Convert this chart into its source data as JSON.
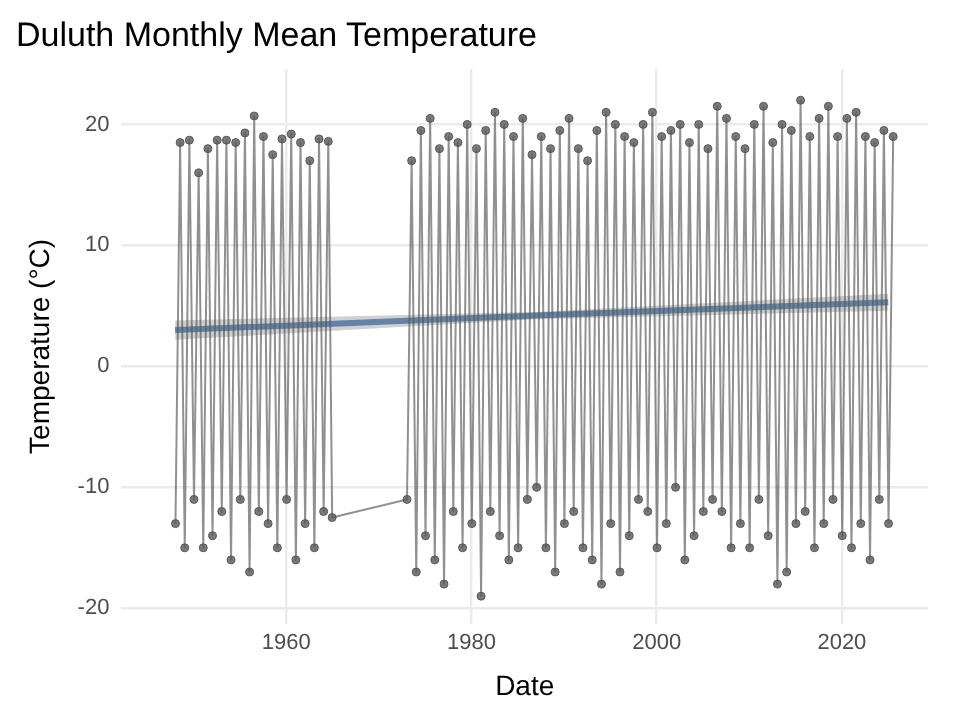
{
  "chart_data": {
    "type": "line",
    "title": "Duluth Monthly Mean Temperature",
    "xlabel": "Date",
    "ylabel": "Temperature (°C)",
    "xlim": [
      1942.2,
      2029.3
    ],
    "xticks": [
      1960,
      1980,
      2000,
      2020
    ],
    "ylim": [
      -21.3,
      24.6
    ],
    "yticks": [
      -20,
      -10,
      0,
      10,
      20
    ],
    "grid": true,
    "legend": false,
    "marker": "circle",
    "line_style": "solid",
    "series": [
      {
        "color": "#595959",
        "x": [
          1948.04,
          1948.54,
          1949.04,
          1949.54,
          1950.04,
          1950.54,
          1951.04,
          1951.54,
          1952.04,
          1952.54,
          1953.04,
          1953.54,
          1954.04,
          1954.54,
          1955.04,
          1955.54,
          1956.04,
          1956.54,
          1957.04,
          1957.54,
          1958.04,
          1958.54,
          1959.04,
          1959.54,
          1960.04,
          1960.54,
          1961.04,
          1961.54,
          1962.04,
          1962.54,
          1963.04,
          1963.54,
          1964.04,
          1964.54,
          1964.96,
          1973.04,
          1973.54,
          1974.04,
          1974.54,
          1975.04,
          1975.54,
          1976.04,
          1976.54,
          1977.04,
          1977.54,
          1978.04,
          1978.54,
          1979.04,
          1979.54,
          1980.04,
          1980.54,
          1981.04,
          1981.54,
          1982.04,
          1982.54,
          1983.04,
          1983.54,
          1984.04,
          1984.54,
          1985.04,
          1985.54,
          1986.04,
          1986.54,
          1987.04,
          1987.54,
          1988.04,
          1988.54,
          1989.04,
          1989.54,
          1990.04,
          1990.54,
          1991.04,
          1991.54,
          1992.04,
          1992.54,
          1993.04,
          1993.54,
          1994.04,
          1994.54,
          1995.04,
          1995.54,
          1996.04,
          1996.54,
          1997.04,
          1997.54,
          1998.04,
          1998.54,
          1999.04,
          1999.54,
          2000.04,
          2000.54,
          2001.04,
          2001.54,
          2002.04,
          2002.54,
          2003.04,
          2003.54,
          2004.04,
          2004.54,
          2005.04,
          2005.54,
          2006.04,
          2006.54,
          2007.04,
          2007.54,
          2008.04,
          2008.54,
          2009.04,
          2009.54,
          2010.04,
          2010.54,
          2011.04,
          2011.54,
          2012.04,
          2012.54,
          2013.04,
          2013.54,
          2014.04,
          2014.54,
          2015.04,
          2015.54,
          2016.04,
          2016.54,
          2017.04,
          2017.54,
          2018.04,
          2018.54,
          2019.04,
          2019.54,
          2020.04,
          2020.54,
          2021.04,
          2021.54,
          2022.04,
          2022.54,
          2023.04,
          2023.54,
          2024.04,
          2024.54,
          2025.04,
          2025.54
        ],
        "values": [
          -13,
          18.5,
          -15,
          18.7,
          -11,
          16,
          -15,
          18,
          -14,
          18.7,
          -12,
          18.7,
          -16,
          18.5,
          -11,
          19.3,
          -17,
          20.7,
          -12,
          19,
          -13,
          17.5,
          -15,
          18.8,
          -11,
          19.2,
          -16,
          18.5,
          -13,
          17,
          -15,
          18.8,
          -12,
          18.6,
          -12.5,
          -11,
          17,
          -17,
          19.5,
          -14,
          20.5,
          -16,
          18,
          -18,
          19,
          -12,
          18.5,
          -15,
          20,
          -13,
          18,
          -19,
          19.5,
          -12,
          21,
          -14,
          20,
          -16,
          19,
          -15,
          20.5,
          -11,
          17.5,
          -10,
          19,
          -15,
          18,
          -17,
          19.5,
          -13,
          20.5,
          -12,
          18,
          -15,
          17,
          -16,
          19.5,
          -18,
          21,
          -13,
          20,
          -17,
          19,
          -14,
          18.5,
          -11,
          20,
          -12,
          21,
          -15,
          19,
          -13,
          19.5,
          -10,
          20,
          -16,
          18.5,
          -14,
          20,
          -12,
          18,
          -11,
          21.5,
          -12,
          20.5,
          -15,
          19,
          -13,
          18,
          -15,
          20,
          -11,
          21.5,
          -14,
          18.5,
          -18,
          20,
          -17,
          19.5,
          -13,
          22,
          -12,
          19,
          -15,
          20.5,
          -13,
          21.5,
          -11,
          19,
          -14,
          20.5,
          -15,
          21,
          -13,
          19,
          -16,
          18.5,
          -11,
          19.5,
          -13,
          19
        ]
      },
      {
        "color": "#3a74b4",
        "marker": "none",
        "x": [
          1948,
          1987,
          2025
        ],
        "values": [
          3.0,
          4.2,
          5.3
        ],
        "lower": [
          2.2,
          3.9,
          4.6
        ],
        "upper": [
          3.8,
          4.5,
          6.0
        ]
      }
    ]
  }
}
